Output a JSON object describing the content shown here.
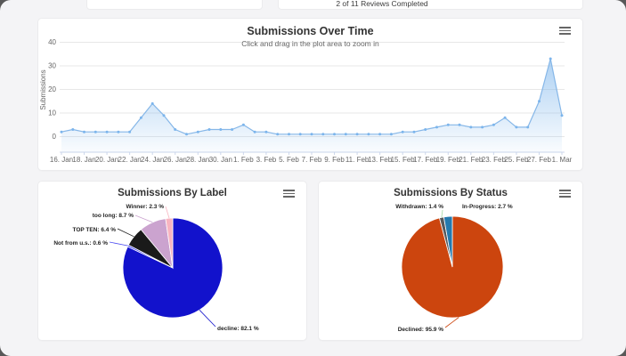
{
  "top_fragments": {
    "reviews_text": "2 of 11 Reviews Completed"
  },
  "ui": {
    "panel_menu_icon": "hamburger-menu-icon",
    "background_color": "#f4f4f6",
    "panel_color": "#ffffff"
  },
  "chart_data": [
    {
      "type": "area",
      "title": "Submissions Over Time",
      "subtitle": "Click and drag in the plot area to zoom in",
      "ylabel": "Submissions",
      "ylim": [
        0,
        40
      ],
      "yticks": [
        0,
        10,
        20,
        30,
        40
      ],
      "grid": true,
      "line_color": "#86b7e8",
      "fill_color": "#7cb5ec",
      "x_tick_labels": [
        "16. Jan",
        "18. Jan",
        "20. Jan",
        "22. Jan",
        "24. Jan",
        "26. Jan",
        "28. Jan",
        "30. Jan",
        "1. Feb",
        "3. Feb",
        "5. Feb",
        "7. Feb",
        "9. Feb",
        "11. Feb",
        "13. Feb",
        "15. Feb",
        "17. Feb",
        "19. Feb",
        "21. Feb",
        "23. Feb",
        "25. Feb",
        "27. Feb",
        "1. Mar"
      ],
      "dates": [
        "16 Jan",
        "17 Jan",
        "18 Jan",
        "19 Jan",
        "20 Jan",
        "21 Jan",
        "22 Jan",
        "23 Jan",
        "24 Jan",
        "25 Jan",
        "26 Jan",
        "27 Jan",
        "28 Jan",
        "29 Jan",
        "30 Jan",
        "31 Jan",
        "1 Feb",
        "2 Feb",
        "3 Feb",
        "4 Feb",
        "5 Feb",
        "6 Feb",
        "7 Feb",
        "8 Feb",
        "9 Feb",
        "10 Feb",
        "11 Feb",
        "12 Feb",
        "13 Feb",
        "14 Feb",
        "15 Feb",
        "16 Feb",
        "17 Feb",
        "18 Feb",
        "19 Feb",
        "20 Feb",
        "21 Feb",
        "22 Feb",
        "23 Feb",
        "24 Feb",
        "25 Feb",
        "26 Feb",
        "27 Feb",
        "28 Feb",
        "1 Mar"
      ],
      "values": [
        2,
        3,
        2,
        2,
        2,
        2,
        2,
        8,
        14,
        9,
        3,
        1,
        2,
        3,
        3,
        3,
        5,
        2,
        2,
        1,
        1,
        1,
        1,
        1,
        1,
        1,
        1,
        1,
        1,
        1,
        2,
        2,
        3,
        4,
        5,
        5,
        4,
        4,
        5,
        8,
        4,
        4,
        15,
        33,
        9
      ]
    },
    {
      "type": "pie",
      "title": "Submissions By Label",
      "label_format": "name: value %",
      "slices": [
        {
          "label": "decline",
          "value": 82.1,
          "color": "#1212cc"
        },
        {
          "label": "Not from u.s.",
          "value": 0.6,
          "color": "#4a4af0"
        },
        {
          "label": "TOP TEN",
          "value": 6.4,
          "color": "#1a1a1a"
        },
        {
          "label": "too long",
          "value": 8.7,
          "color": "#cba3cf"
        },
        {
          "label": "Winner",
          "value": 2.3,
          "color": "#f8b4c0"
        }
      ]
    },
    {
      "type": "pie",
      "title": "Submissions By Status",
      "label_format": "name: value %",
      "slices": [
        {
          "label": "Declined",
          "value": 95.9,
          "color": "#cc450e"
        },
        {
          "label": "Withdrawn",
          "value": 1.4,
          "color": "#56595c",
          "connector_color": "#a4dba4"
        },
        {
          "label": "In-Progress",
          "value": 2.7,
          "color": "#2379ae",
          "connector_color": "#aacdе8"
        }
      ]
    }
  ]
}
